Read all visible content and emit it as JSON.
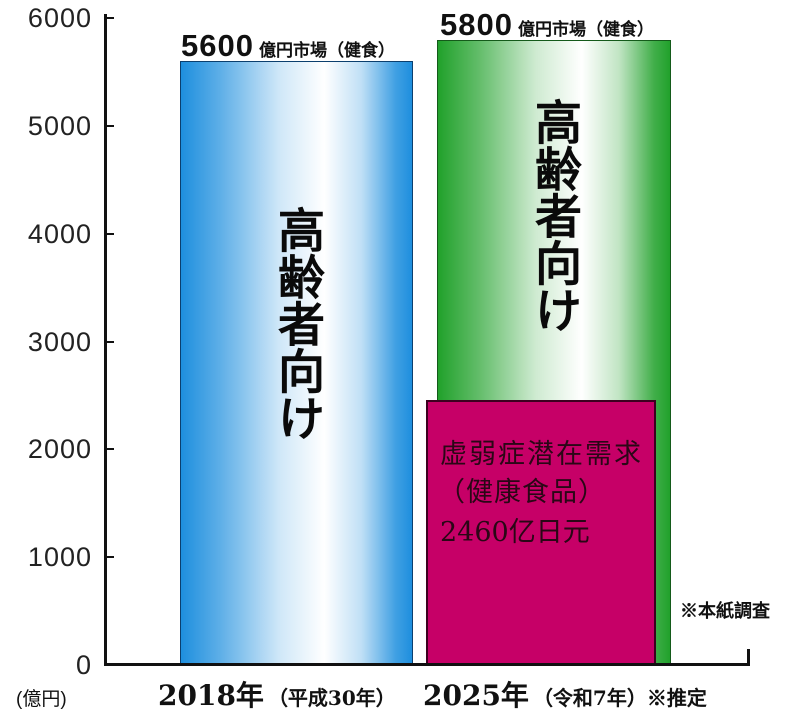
{
  "chart_data": {
    "type": "bar",
    "categories": [
      "2018年",
      "2025年"
    ],
    "category_notes": [
      "（平成30年）",
      "（令和7年）"
    ],
    "estimate_mark": "※推定",
    "ylabel": "(億円)",
    "ylim": [
      0,
      6000
    ],
    "yticks": [
      0,
      1000,
      2000,
      3000,
      4000,
      5000,
      6000
    ],
    "grid": false,
    "value_unit": "億円市場（健食）",
    "series": [
      {
        "name": "高齢者向け",
        "values": [
          5600,
          5800
        ],
        "colors": [
          "#1e8fde",
          "#21a12b"
        ]
      },
      {
        "name": "虚弱症潜在需求",
        "sub_label": "（健康食品）",
        "value_label": "2460亿日元",
        "values": [
          null,
          2460
        ],
        "colors": [
          null,
          "#c60067"
        ]
      }
    ],
    "source_note": "※本紙調査"
  }
}
